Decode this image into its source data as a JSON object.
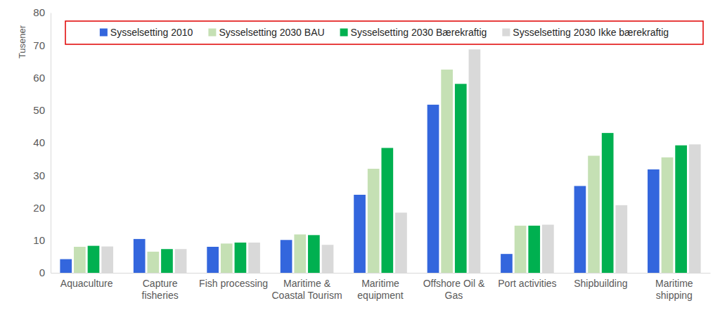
{
  "chart_data": {
    "type": "bar",
    "y_label": "Tusener",
    "categories": [
      "Aquaculture",
      "Capture fisheries",
      "Fish processing",
      "Maritime & Coastal Tourism",
      "Maritime equipment",
      "Offshore Oil & Gas",
      "Port activities",
      "Shipbuilding",
      "Maritime shipping"
    ],
    "series": [
      {
        "name": "Sysselsetting 2010",
        "color": "#3366dd",
        "values": [
          4.2,
          10.4,
          8.0,
          10.1,
          24.0,
          51.7,
          5.8,
          26.7,
          31.8
        ]
      },
      {
        "name": "Sysselsetting 2030 BAU",
        "color": "#c5e0b4",
        "values": [
          8.0,
          6.5,
          9.0,
          11.8,
          32.0,
          62.5,
          14.5,
          36.0,
          35.5
        ]
      },
      {
        "name": "Sysselsetting 2030 Bærekraftig",
        "color": "#00b050",
        "values": [
          8.3,
          7.3,
          9.3,
          11.6,
          38.4,
          58.1,
          14.5,
          43.0,
          39.2
        ]
      },
      {
        "name": "Sysselsetting 2030 Ikke bærekraftig",
        "color": "#d9d9d9",
        "values": [
          8.1,
          7.3,
          9.3,
          8.6,
          18.5,
          68.7,
          14.8,
          20.8,
          39.5
        ]
      }
    ],
    "ylim": [
      0,
      80
    ],
    "yticks": [
      0,
      10,
      20,
      30,
      40,
      50,
      60,
      70,
      80
    ],
    "grid": false,
    "legend": "top"
  }
}
